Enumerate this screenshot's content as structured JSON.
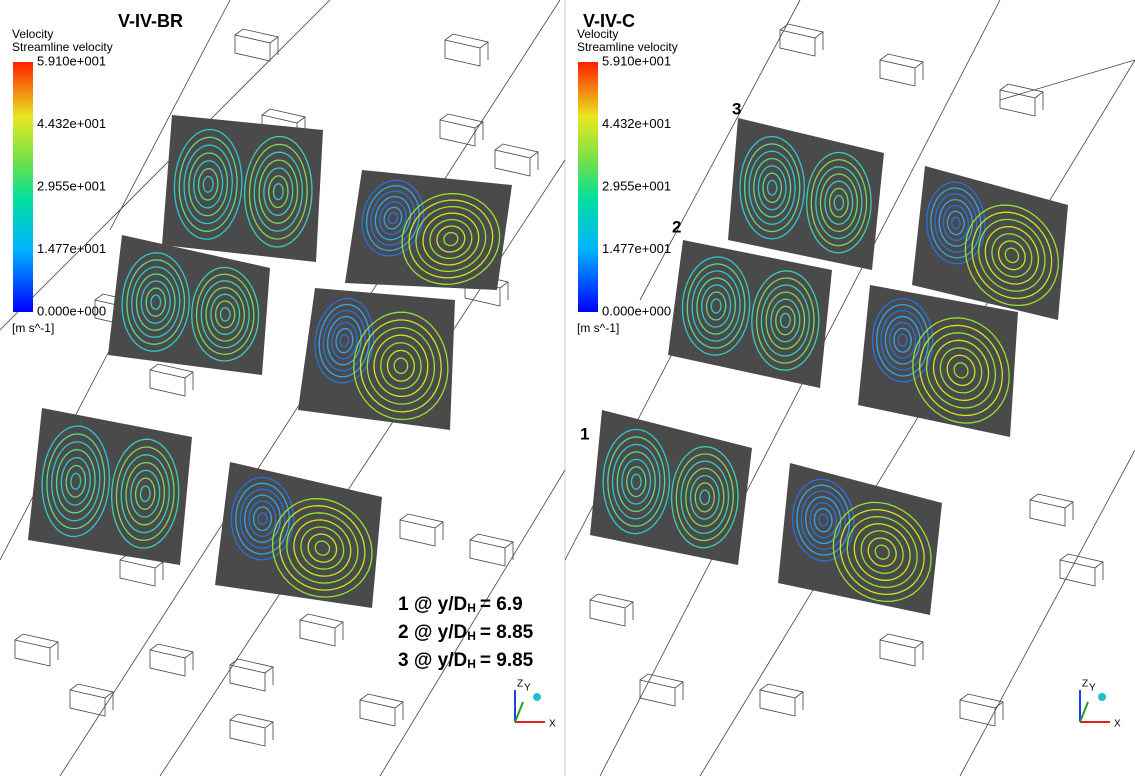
{
  "panels": [
    {
      "title": "V-IV-BR",
      "legend": {
        "title": "Velocity",
        "subtitle": "Streamline velocity",
        "ticks": [
          "5.910e+001",
          "4.432e+001",
          "2.955e+001",
          "1.477e+001",
          "0.000e+000"
        ],
        "unit": "[m s^-1]"
      },
      "axes": {
        "z": "Z",
        "y": "Y",
        "x": "X"
      }
    },
    {
      "title": "V-IV-C",
      "legend": {
        "title": "Velocity",
        "subtitle": "Streamline velocity",
        "ticks": [
          "5.910e+001",
          "4.432e+001",
          "2.955e+001",
          "1.477e+001",
          "0.000e+000"
        ],
        "unit": "[m s^-1]"
      },
      "axes": {
        "z": "Z",
        "y": "Y",
        "x": "X"
      },
      "plane_labels": [
        "3",
        "2",
        "1"
      ]
    }
  ],
  "annotations": [
    {
      "lead": "1 @ y/D",
      "sub": "H",
      "value": "= 6.9"
    },
    {
      "lead": "2 @ y/D",
      "sub": "H",
      "value": "= 8.85"
    },
    {
      "lead": "3 @ y/D",
      "sub": "H",
      "value": "= 9.85"
    }
  ]
}
